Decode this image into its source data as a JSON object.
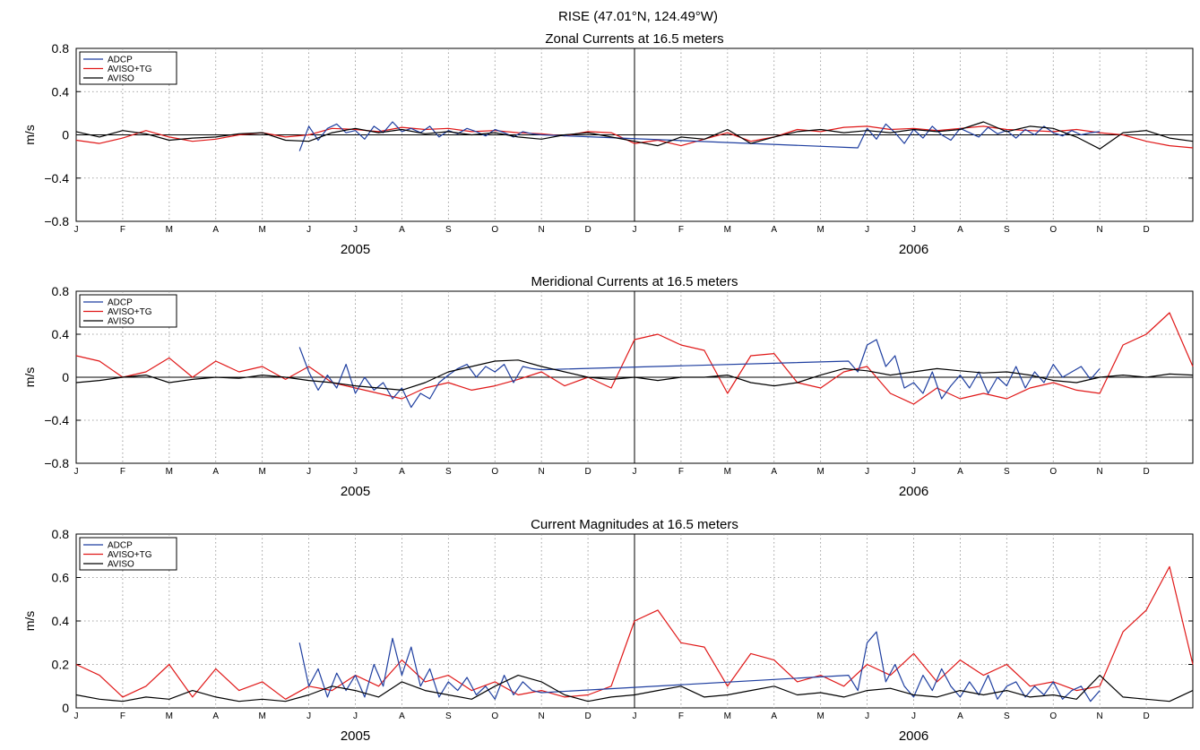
{
  "figure": {
    "station": "RISE (47.01°N, 124.49°W)"
  },
  "legend_entries": [
    "ADCP",
    "AVISO+TG",
    "AVISO"
  ],
  "colors": {
    "ADCP": "#1f3fa0",
    "AVISO+TG": "#e01818",
    "AVISO": "#000000"
  },
  "x_axis": {
    "months": [
      "J",
      "F",
      "M",
      "A",
      "M",
      "J",
      "J",
      "A",
      "S",
      "O",
      "N",
      "D",
      "J",
      "F",
      "M",
      "A",
      "M",
      "J",
      "J",
      "A",
      "S",
      "O",
      "N",
      "D"
    ],
    "years": [
      "2005",
      "2006"
    ]
  },
  "chart_data": [
    {
      "type": "line",
      "title": "Zonal Currents at 16.5 meters",
      "ylabel": "m/s",
      "ylim": [
        -0.8,
        0.8
      ],
      "yticks": [
        0.8,
        0.4,
        0,
        -0.4,
        -0.8
      ],
      "ytick_labels": [
        "0.8",
        "0.4",
        "0",
        "−0.4",
        "−0.8"
      ],
      "xlim_months": [
        0,
        24
      ],
      "grid": true,
      "zero_line": true,
      "legend_position": "top-left",
      "series": [
        {
          "name": "ADCP",
          "x": [
            4.8,
            5.0,
            5.2,
            5.4,
            5.6,
            5.8,
            6.0,
            6.2,
            6.4,
            6.6,
            6.8,
            7.0,
            7.2,
            7.4,
            7.6,
            7.8,
            8.0,
            8.2,
            8.4,
            8.6,
            8.8,
            9.0,
            9.2,
            9.4,
            9.6,
            9.8,
            10.0,
            16.8,
            17.0,
            17.2,
            17.4,
            17.6,
            17.8,
            18.0,
            18.2,
            18.4,
            18.6,
            18.8,
            19.0,
            19.2,
            19.4,
            19.6,
            19.8,
            20.0,
            20.2,
            20.4,
            20.6,
            20.8,
            21.0,
            21.2,
            21.4,
            21.6,
            21.8,
            22.0
          ],
          "values": [
            -0.15,
            0.08,
            -0.05,
            0.06,
            0.1,
            0.02,
            0.04,
            -0.04,
            0.08,
            0.02,
            0.12,
            0.03,
            0.06,
            0.02,
            0.08,
            -0.02,
            0.04,
            0.01,
            0.06,
            0.03,
            -0.01,
            0.05,
            0.02,
            -0.02,
            0.03,
            0.01,
            0.0,
            -0.12,
            0.06,
            -0.04,
            0.1,
            0.02,
            -0.08,
            0.05,
            -0.03,
            0.08,
            0.0,
            -0.05,
            0.06,
            0.02,
            -0.02,
            0.07,
            0.01,
            0.04,
            -0.03,
            0.05,
            0.0,
            0.08,
            0.02,
            -0.01,
            0.04,
            0.0,
            0.02,
            0.03
          ]
        },
        {
          "name": "AVISO+TG",
          "x": [
            0.0,
            0.5,
            1.0,
            1.5,
            2.0,
            2.5,
            3.0,
            3.5,
            4.0,
            4.5,
            5.0,
            5.5,
            6.0,
            6.5,
            7.0,
            7.5,
            8.0,
            8.5,
            9.0,
            9.5,
            10.0,
            10.5,
            11.0,
            11.5,
            12.0,
            12.5,
            13.0,
            13.5,
            14.0,
            14.5,
            15.0,
            15.5,
            16.0,
            16.5,
            17.0,
            17.5,
            18.0,
            18.5,
            19.0,
            19.5,
            20.0,
            20.5,
            21.0,
            21.5,
            22.0,
            22.5,
            23.0,
            23.5,
            24.0
          ],
          "values": [
            -0.05,
            -0.08,
            -0.03,
            0.04,
            -0.02,
            -0.06,
            -0.04,
            0.0,
            0.02,
            -0.02,
            0.0,
            0.06,
            0.05,
            0.03,
            0.07,
            0.05,
            0.06,
            0.03,
            0.04,
            0.02,
            0.01,
            -0.01,
            0.03,
            0.02,
            -0.08,
            -0.05,
            -0.1,
            -0.04,
            0.02,
            -0.06,
            -0.02,
            0.05,
            0.03,
            0.07,
            0.08,
            0.05,
            0.06,
            0.04,
            0.06,
            0.08,
            0.05,
            0.04,
            0.03,
            0.05,
            0.02,
            0.0,
            -0.06,
            -0.1,
            -0.12
          ]
        },
        {
          "name": "AVISO",
          "x": [
            0.0,
            0.5,
            1.0,
            1.5,
            2.0,
            2.5,
            3.0,
            3.5,
            4.0,
            4.5,
            5.0,
            5.5,
            6.0,
            6.5,
            7.0,
            7.5,
            8.0,
            8.5,
            9.0,
            9.5,
            10.0,
            10.5,
            11.0,
            11.5,
            12.0,
            12.5,
            13.0,
            13.5,
            14.0,
            14.5,
            15.0,
            15.5,
            16.0,
            16.5,
            17.0,
            17.5,
            18.0,
            18.5,
            19.0,
            19.5,
            20.0,
            20.5,
            21.0,
            21.5,
            22.0,
            22.5,
            23.0,
            23.5,
            24.0
          ],
          "values": [
            0.03,
            -0.02,
            0.04,
            0.01,
            -0.05,
            -0.03,
            -0.02,
            0.01,
            0.02,
            -0.05,
            -0.06,
            0.02,
            0.06,
            0.02,
            0.05,
            0.01,
            0.03,
            0.0,
            0.02,
            -0.02,
            -0.04,
            0.0,
            0.02,
            -0.02,
            -0.06,
            -0.1,
            -0.02,
            -0.04,
            0.05,
            -0.08,
            -0.02,
            0.03,
            0.05,
            0.02,
            0.04,
            0.02,
            0.05,
            0.03,
            0.05,
            0.12,
            0.03,
            0.08,
            0.06,
            -0.02,
            -0.13,
            0.02,
            0.04,
            -0.03,
            -0.06
          ]
        }
      ]
    },
    {
      "type": "line",
      "title": "Meridional Currents at 16.5 meters",
      "ylabel": "m/s",
      "ylim": [
        -0.8,
        0.8
      ],
      "yticks": [
        0.8,
        0.4,
        0,
        -0.4,
        -0.8
      ],
      "ytick_labels": [
        "0.8",
        "0.4",
        "0",
        "−0.4",
        "−0.8"
      ],
      "xlim_months": [
        0,
        24
      ],
      "grid": true,
      "zero_line": true,
      "legend_position": "top-left",
      "series": [
        {
          "name": "ADCP",
          "x": [
            4.8,
            5.0,
            5.2,
            5.4,
            5.6,
            5.8,
            6.0,
            6.2,
            6.4,
            6.6,
            6.8,
            7.0,
            7.2,
            7.4,
            7.6,
            7.8,
            8.0,
            8.2,
            8.4,
            8.6,
            8.8,
            9.0,
            9.2,
            9.4,
            9.6,
            9.8,
            10.0,
            16.6,
            16.8,
            17.0,
            17.2,
            17.4,
            17.6,
            17.8,
            18.0,
            18.2,
            18.4,
            18.6,
            18.8,
            19.0,
            19.2,
            19.4,
            19.6,
            19.8,
            20.0,
            20.2,
            20.4,
            20.6,
            20.8,
            21.0,
            21.2,
            21.4,
            21.6,
            21.8,
            22.0
          ],
          "values": [
            0.28,
            0.05,
            -0.12,
            0.02,
            -0.1,
            0.12,
            -0.15,
            0.0,
            -0.12,
            -0.05,
            -0.2,
            -0.1,
            -0.28,
            -0.15,
            -0.2,
            -0.05,
            0.02,
            0.08,
            0.12,
            0.0,
            0.1,
            0.05,
            0.12,
            -0.05,
            0.1,
            0.08,
            0.07,
            0.15,
            0.05,
            0.3,
            0.35,
            0.1,
            0.2,
            -0.1,
            -0.05,
            -0.15,
            0.05,
            -0.2,
            -0.08,
            0.02,
            -0.1,
            0.05,
            -0.15,
            0.0,
            -0.08,
            0.1,
            -0.1,
            0.05,
            -0.05,
            0.12,
            0.0,
            0.05,
            0.1,
            -0.02,
            0.08
          ]
        },
        {
          "name": "AVISO+TG",
          "x": [
            0.0,
            0.5,
            1.0,
            1.5,
            2.0,
            2.5,
            3.0,
            3.5,
            4.0,
            4.5,
            5.0,
            5.5,
            6.0,
            6.5,
            7.0,
            7.5,
            8.0,
            8.5,
            9.0,
            9.5,
            10.0,
            10.5,
            11.0,
            11.5,
            12.0,
            12.5,
            13.0,
            13.5,
            14.0,
            14.5,
            15.0,
            15.5,
            16.0,
            16.5,
            17.0,
            17.5,
            18.0,
            18.5,
            19.0,
            19.5,
            20.0,
            20.5,
            21.0,
            21.5,
            22.0,
            22.5,
            23.0,
            23.5,
            24.0
          ],
          "values": [
            0.2,
            0.15,
            0.0,
            0.05,
            0.18,
            0.0,
            0.15,
            0.05,
            0.1,
            -0.02,
            0.1,
            -0.05,
            -0.1,
            -0.15,
            -0.2,
            -0.1,
            -0.05,
            -0.12,
            -0.08,
            -0.02,
            0.05,
            -0.08,
            0.0,
            -0.1,
            0.35,
            0.4,
            0.3,
            0.25,
            -0.15,
            0.2,
            0.22,
            -0.05,
            -0.1,
            0.05,
            0.1,
            -0.15,
            -0.25,
            -0.1,
            -0.2,
            -0.15,
            -0.2,
            -0.1,
            -0.05,
            -0.12,
            -0.15,
            0.3,
            0.4,
            0.6,
            0.1
          ]
        },
        {
          "name": "AVISO",
          "x": [
            0.0,
            0.5,
            1.0,
            1.5,
            2.0,
            2.5,
            3.0,
            3.5,
            4.0,
            4.5,
            5.0,
            5.5,
            6.0,
            6.5,
            7.0,
            7.5,
            8.0,
            8.5,
            9.0,
            9.5,
            10.0,
            10.5,
            11.0,
            11.5,
            12.0,
            12.5,
            13.0,
            13.5,
            14.0,
            14.5,
            15.0,
            15.5,
            16.0,
            16.5,
            17.0,
            17.5,
            18.0,
            18.5,
            19.0,
            19.5,
            20.0,
            20.5,
            21.0,
            21.5,
            22.0,
            22.5,
            23.0,
            23.5,
            24.0
          ],
          "values": [
            -0.05,
            -0.03,
            0.0,
            0.02,
            -0.05,
            -0.02,
            0.0,
            -0.01,
            0.02,
            0.0,
            -0.03,
            -0.05,
            -0.08,
            -0.1,
            -0.12,
            -0.05,
            0.05,
            0.1,
            0.15,
            0.16,
            0.1,
            0.05,
            0.0,
            -0.02,
            0.0,
            -0.03,
            0.0,
            0.0,
            0.02,
            -0.05,
            -0.08,
            -0.05,
            0.02,
            0.08,
            0.06,
            0.02,
            0.05,
            0.08,
            0.06,
            0.04,
            0.05,
            0.02,
            -0.03,
            -0.05,
            0.0,
            0.02,
            0.0,
            0.03,
            0.02
          ]
        }
      ]
    },
    {
      "type": "line",
      "title": "Current Magnitudes at 16.5 meters",
      "ylabel": "m/s",
      "ylim": [
        0,
        0.8
      ],
      "yticks": [
        0.8,
        0.6,
        0.4,
        0.2,
        0
      ],
      "ytick_labels": [
        "0.8",
        "0.6",
        "0.4",
        "0.2",
        "0"
      ],
      "xlim_months": [
        0,
        24
      ],
      "grid": true,
      "zero_line": false,
      "legend_position": "top-left",
      "series": [
        {
          "name": "ADCP",
          "x": [
            4.8,
            5.0,
            5.2,
            5.4,
            5.6,
            5.8,
            6.0,
            6.2,
            6.4,
            6.6,
            6.8,
            7.0,
            7.2,
            7.4,
            7.6,
            7.8,
            8.0,
            8.2,
            8.4,
            8.6,
            8.8,
            9.0,
            9.2,
            9.4,
            9.6,
            9.8,
            10.0,
            16.6,
            16.8,
            17.0,
            17.2,
            17.4,
            17.6,
            17.8,
            18.0,
            18.2,
            18.4,
            18.6,
            18.8,
            19.0,
            19.2,
            19.4,
            19.6,
            19.8,
            20.0,
            20.2,
            20.4,
            20.6,
            20.8,
            21.0,
            21.2,
            21.4,
            21.6,
            21.8,
            22.0
          ],
          "values": [
            0.3,
            0.1,
            0.18,
            0.05,
            0.16,
            0.08,
            0.15,
            0.05,
            0.2,
            0.1,
            0.32,
            0.15,
            0.28,
            0.1,
            0.18,
            0.05,
            0.12,
            0.08,
            0.14,
            0.06,
            0.1,
            0.04,
            0.15,
            0.06,
            0.12,
            0.08,
            0.07,
            0.15,
            0.08,
            0.3,
            0.35,
            0.12,
            0.2,
            0.1,
            0.05,
            0.15,
            0.08,
            0.18,
            0.1,
            0.05,
            0.12,
            0.06,
            0.15,
            0.04,
            0.1,
            0.12,
            0.05,
            0.1,
            0.06,
            0.12,
            0.04,
            0.08,
            0.1,
            0.03,
            0.08
          ]
        },
        {
          "name": "AVISO+TG",
          "x": [
            0.0,
            0.5,
            1.0,
            1.5,
            2.0,
            2.5,
            3.0,
            3.5,
            4.0,
            4.5,
            5.0,
            5.5,
            6.0,
            6.5,
            7.0,
            7.5,
            8.0,
            8.5,
            9.0,
            9.5,
            10.0,
            10.5,
            11.0,
            11.5,
            12.0,
            12.5,
            13.0,
            13.5,
            14.0,
            14.5,
            15.0,
            15.5,
            16.0,
            16.5,
            17.0,
            17.5,
            18.0,
            18.5,
            19.0,
            19.5,
            20.0,
            20.5,
            21.0,
            21.5,
            22.0,
            22.5,
            23.0,
            23.5,
            24.0
          ],
          "values": [
            0.2,
            0.15,
            0.05,
            0.1,
            0.2,
            0.05,
            0.18,
            0.08,
            0.12,
            0.04,
            0.1,
            0.08,
            0.15,
            0.1,
            0.22,
            0.12,
            0.15,
            0.08,
            0.12,
            0.06,
            0.08,
            0.05,
            0.06,
            0.1,
            0.4,
            0.45,
            0.3,
            0.28,
            0.1,
            0.25,
            0.22,
            0.12,
            0.15,
            0.1,
            0.2,
            0.15,
            0.25,
            0.12,
            0.22,
            0.15,
            0.2,
            0.1,
            0.12,
            0.08,
            0.1,
            0.35,
            0.45,
            0.65,
            0.2
          ]
        },
        {
          "name": "AVISO",
          "x": [
            0.0,
            0.5,
            1.0,
            1.5,
            2.0,
            2.5,
            3.0,
            3.5,
            4.0,
            4.5,
            5.0,
            5.5,
            6.0,
            6.5,
            7.0,
            7.5,
            8.0,
            8.5,
            9.0,
            9.5,
            10.0,
            10.5,
            11.0,
            11.5,
            12.0,
            12.5,
            13.0,
            13.5,
            14.0,
            14.5,
            15.0,
            15.5,
            16.0,
            16.5,
            17.0,
            17.5,
            18.0,
            18.5,
            19.0,
            19.5,
            20.0,
            20.5,
            21.0,
            21.5,
            22.0,
            22.5,
            23.0,
            23.5,
            24.0
          ],
          "values": [
            0.06,
            0.04,
            0.03,
            0.05,
            0.04,
            0.08,
            0.05,
            0.03,
            0.04,
            0.03,
            0.06,
            0.1,
            0.08,
            0.05,
            0.12,
            0.08,
            0.06,
            0.04,
            0.1,
            0.15,
            0.12,
            0.06,
            0.03,
            0.05,
            0.06,
            0.08,
            0.1,
            0.05,
            0.06,
            0.08,
            0.1,
            0.06,
            0.07,
            0.05,
            0.08,
            0.09,
            0.06,
            0.05,
            0.08,
            0.06,
            0.08,
            0.05,
            0.06,
            0.04,
            0.15,
            0.05,
            0.04,
            0.03,
            0.08
          ]
        }
      ]
    }
  ]
}
